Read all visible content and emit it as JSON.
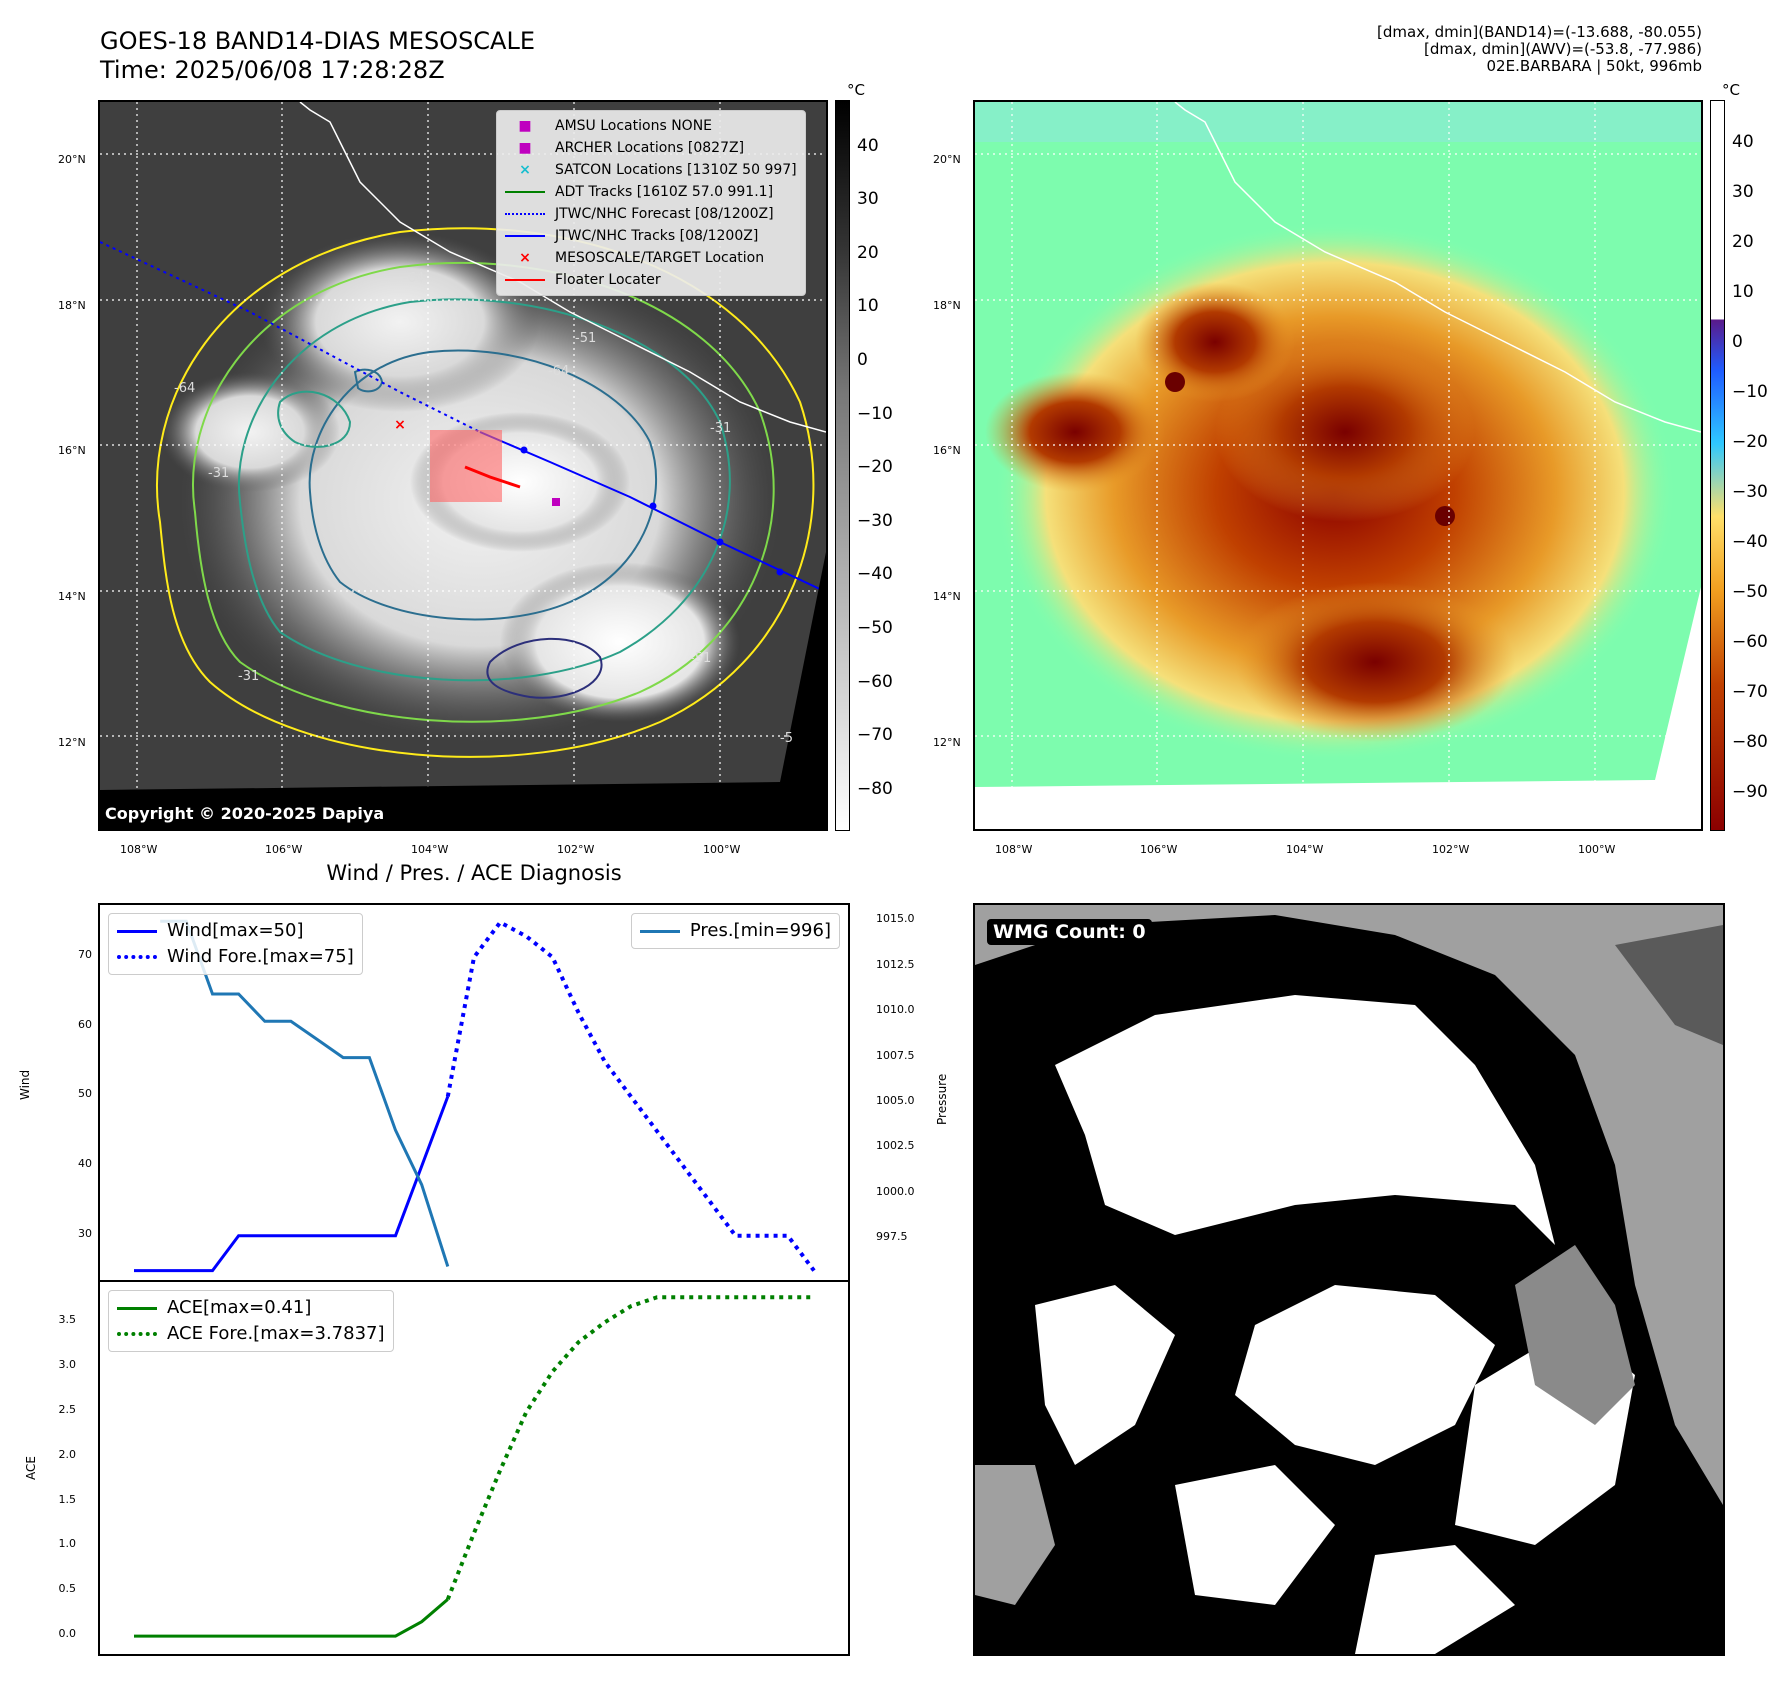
{
  "header": {
    "title": "GOES-18 BAND14-DIAS MESOSCALE",
    "time": "Time: 2025/06/08 17:28:28Z",
    "dmax_band14": "[dmax, dmin](BAND14)=(-13.688, -80.055)",
    "dmax_awv": "[dmax, dmin](AWV)=(-53.8, -77.986)",
    "storm": "02E.BARBARA | 50kt, 996mb"
  },
  "map_ticks": {
    "lat": [
      "20°N",
      "18°N",
      "16°N",
      "14°N",
      "12°N"
    ],
    "lon": [
      "108°W",
      "106°W",
      "104°W",
      "102°W",
      "100°W"
    ]
  },
  "ir_panel": {
    "cbar_unit": "°C",
    "cbar_ticks": [
      "40",
      "30",
      "20",
      "10",
      "0",
      "−10",
      "−20",
      "−30",
      "−40",
      "−50",
      "−60",
      "−70",
      "−80"
    ],
    "copyright": "Copyright © 2020-2025 Dapiya",
    "legend": [
      {
        "label": "AMSU Locations NONE",
        "marker": "square",
        "color": "#bf00bf"
      },
      {
        "label": "ARCHER Locations [0827Z]",
        "marker": "square",
        "color": "#bf00bf"
      },
      {
        "label": "SATCON Locations [1310Z 50 997]",
        "marker": "x",
        "color": "#17becf"
      },
      {
        "label": "ADT Tracks [1610Z 57.0 991.1]",
        "marker": "line",
        "color": "#008000"
      },
      {
        "label": "JTWC/NHC Forecast [08/1200Z]",
        "marker": "dotted",
        "color": "#0000ff"
      },
      {
        "label": "JTWC/NHC Tracks [08/1200Z]",
        "marker": "line-dot",
        "color": "#0000ff"
      },
      {
        "label": "MESOSCALE/TARGET Location",
        "marker": "x",
        "color": "#ff0000"
      },
      {
        "label": "Floater Locater",
        "marker": "line",
        "color": "#ff0000"
      }
    ],
    "contour_labels": [
      "-64",
      "-64",
      "-64",
      "-31",
      "-31",
      "-31",
      "-51",
      "-51",
      "-5"
    ]
  },
  "awv_panel": {
    "cbar_unit": "°C",
    "cbar_ticks": [
      "40",
      "30",
      "20",
      "10",
      "0",
      "−10",
      "−20",
      "−30",
      "−40",
      "−50",
      "−60",
      "−70",
      "−80",
      "−90"
    ]
  },
  "diag": {
    "title": "Wind / Pres. / ACE Diagnosis",
    "wind_ylabel": "Wind",
    "pres_ylabel": "Pressure",
    "ace_ylabel": "ACE",
    "legend_wind": "Wind[max=50]",
    "legend_wind_fore": "Wind Fore.[max=75]",
    "legend_pres": "Pres.[min=996]",
    "legend_ace": "ACE[max=0.41]",
    "legend_ace_fore": "ACE Fore.[max=3.7837]"
  },
  "wmg": {
    "label": "WMG Count: 0"
  },
  "chart_data": [
    {
      "type": "line",
      "panel": "wind-pressure",
      "x": [
        0,
        1,
        2,
        3,
        4,
        5,
        6,
        7,
        8,
        9,
        10,
        11,
        12,
        13,
        14,
        15,
        16,
        17,
        18,
        19,
        20,
        21,
        22,
        23,
        24,
        25,
        26
      ],
      "series": [
        {
          "name": "Wind[max=50]",
          "axis": "left",
          "color": "#0000ff",
          "style": "solid",
          "x": [
            0,
            1,
            2,
            3,
            4,
            5,
            6,
            7,
            8,
            9,
            10,
            11,
            12
          ],
          "values": [
            25,
            25,
            25,
            25,
            30,
            30,
            30,
            30,
            30,
            30,
            30,
            40,
            50
          ]
        },
        {
          "name": "Wind Fore.[max=75]",
          "axis": "left",
          "color": "#0000ff",
          "style": "dotted",
          "x": [
            12,
            13,
            14,
            15,
            16,
            17,
            18,
            19,
            20,
            21,
            22,
            23,
            24,
            25,
            26
          ],
          "values": [
            50,
            70,
            75,
            73,
            70,
            62,
            55,
            50,
            45,
            40,
            35,
            30,
            30,
            30,
            25
          ]
        },
        {
          "name": "Pres.[min=996]",
          "axis": "right",
          "color": "#1f77b4",
          "style": "solid",
          "x": [
            1,
            2,
            3,
            4,
            5,
            6,
            7,
            8,
            9,
            10,
            11,
            12
          ],
          "values": [
            1015,
            1015,
            1011,
            1011,
            1009.5,
            1009.5,
            1008.5,
            1007.5,
            1007.5,
            1003.5,
            1000.5,
            996
          ]
        }
      ],
      "ylabel": "Wind",
      "ylim": [
        23.5,
        77.5
      ],
      "y_ticks": [
        30,
        40,
        50,
        60,
        70
      ],
      "y2label": "Pressure",
      "y2lim": [
        995.2,
        1015.9
      ],
      "y2_ticks": [
        997.5,
        1000.0,
        1002.5,
        1005.0,
        1007.5,
        1010.0,
        1012.5,
        1015.0
      ],
      "xlim": [
        -1.3,
        27.3
      ]
    },
    {
      "type": "line",
      "panel": "ace",
      "series": [
        {
          "name": "ACE[max=0.41]",
          "color": "#008000",
          "style": "solid",
          "x": [
            0,
            1,
            2,
            3,
            4,
            5,
            6,
            7,
            8,
            9,
            10,
            11,
            12
          ],
          "values": [
            0,
            0,
            0,
            0,
            0,
            0,
            0,
            0,
            0,
            0,
            0,
            0.16,
            0.41
          ]
        },
        {
          "name": "ACE Fore.[max=3.7837]",
          "color": "#008000",
          "style": "dotted",
          "x": [
            12,
            13,
            14,
            15,
            16,
            17,
            18,
            19,
            20,
            21,
            22,
            23,
            24,
            25,
            26
          ],
          "values": [
            0.41,
            1.15,
            1.85,
            2.5,
            2.95,
            3.28,
            3.5,
            3.68,
            3.78,
            3.78,
            3.78,
            3.78,
            3.78,
            3.78,
            3.78
          ]
        }
      ],
      "ylabel": "ACE",
      "ylim": [
        -0.2,
        3.95
      ],
      "y_ticks": [
        0.0,
        0.5,
        1.0,
        1.5,
        2.0,
        2.5,
        3.0,
        3.5
      ],
      "xlim": [
        -1.3,
        27.3
      ]
    }
  ]
}
